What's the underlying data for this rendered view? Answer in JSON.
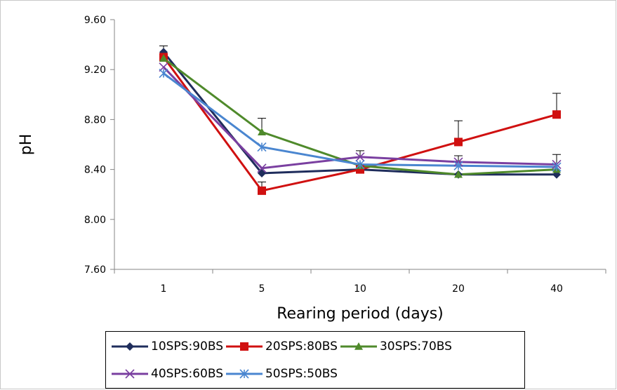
{
  "chart_data": {
    "type": "line",
    "title": "",
    "xlabel": "Rearing period (days)",
    "ylabel": "pH",
    "categories": [
      "1",
      "5",
      "10",
      "20",
      "40"
    ],
    "ylim": [
      7.6,
      9.6
    ],
    "yticks": [
      "7.60",
      "8.00",
      "8.40",
      "8.80",
      "9.20",
      "9.60"
    ],
    "grid": false,
    "legend_position": "bottom",
    "error_bars": true,
    "series": [
      {
        "name": "10SPS:90BS",
        "color": "#1f2d5c",
        "marker": "diamond",
        "values": [
          9.34,
          8.37,
          8.4,
          8.36,
          8.36
        ],
        "errors": [
          0.05,
          0.0,
          0.0,
          0.0,
          0.0
        ]
      },
      {
        "name": "20SPS:80BS",
        "color": "#d01010",
        "marker": "square",
        "values": [
          9.3,
          8.23,
          8.4,
          8.62,
          8.84
        ],
        "errors": [
          0.0,
          0.07,
          0.0,
          0.17,
          0.17
        ]
      },
      {
        "name": "30SPS:70BS",
        "color": "#4f8a2b",
        "marker": "triangle",
        "values": [
          9.29,
          8.7,
          8.43,
          8.36,
          8.4
        ],
        "errors": [
          0.0,
          0.11,
          0.0,
          0.0,
          0.0
        ]
      },
      {
        "name": "40SPS:60BS",
        "color": "#7a3fa0",
        "marker": "x",
        "values": [
          9.22,
          8.41,
          8.5,
          8.46,
          8.44
        ],
        "errors": [
          0.0,
          0.0,
          0.05,
          0.05,
          0.08
        ]
      },
      {
        "name": "50SPS:50BS",
        "color": "#4a86d0",
        "marker": "star",
        "values": [
          9.17,
          8.58,
          8.44,
          8.43,
          8.42
        ],
        "errors": [
          0.0,
          0.0,
          0.0,
          0.0,
          0.0
        ]
      }
    ]
  }
}
